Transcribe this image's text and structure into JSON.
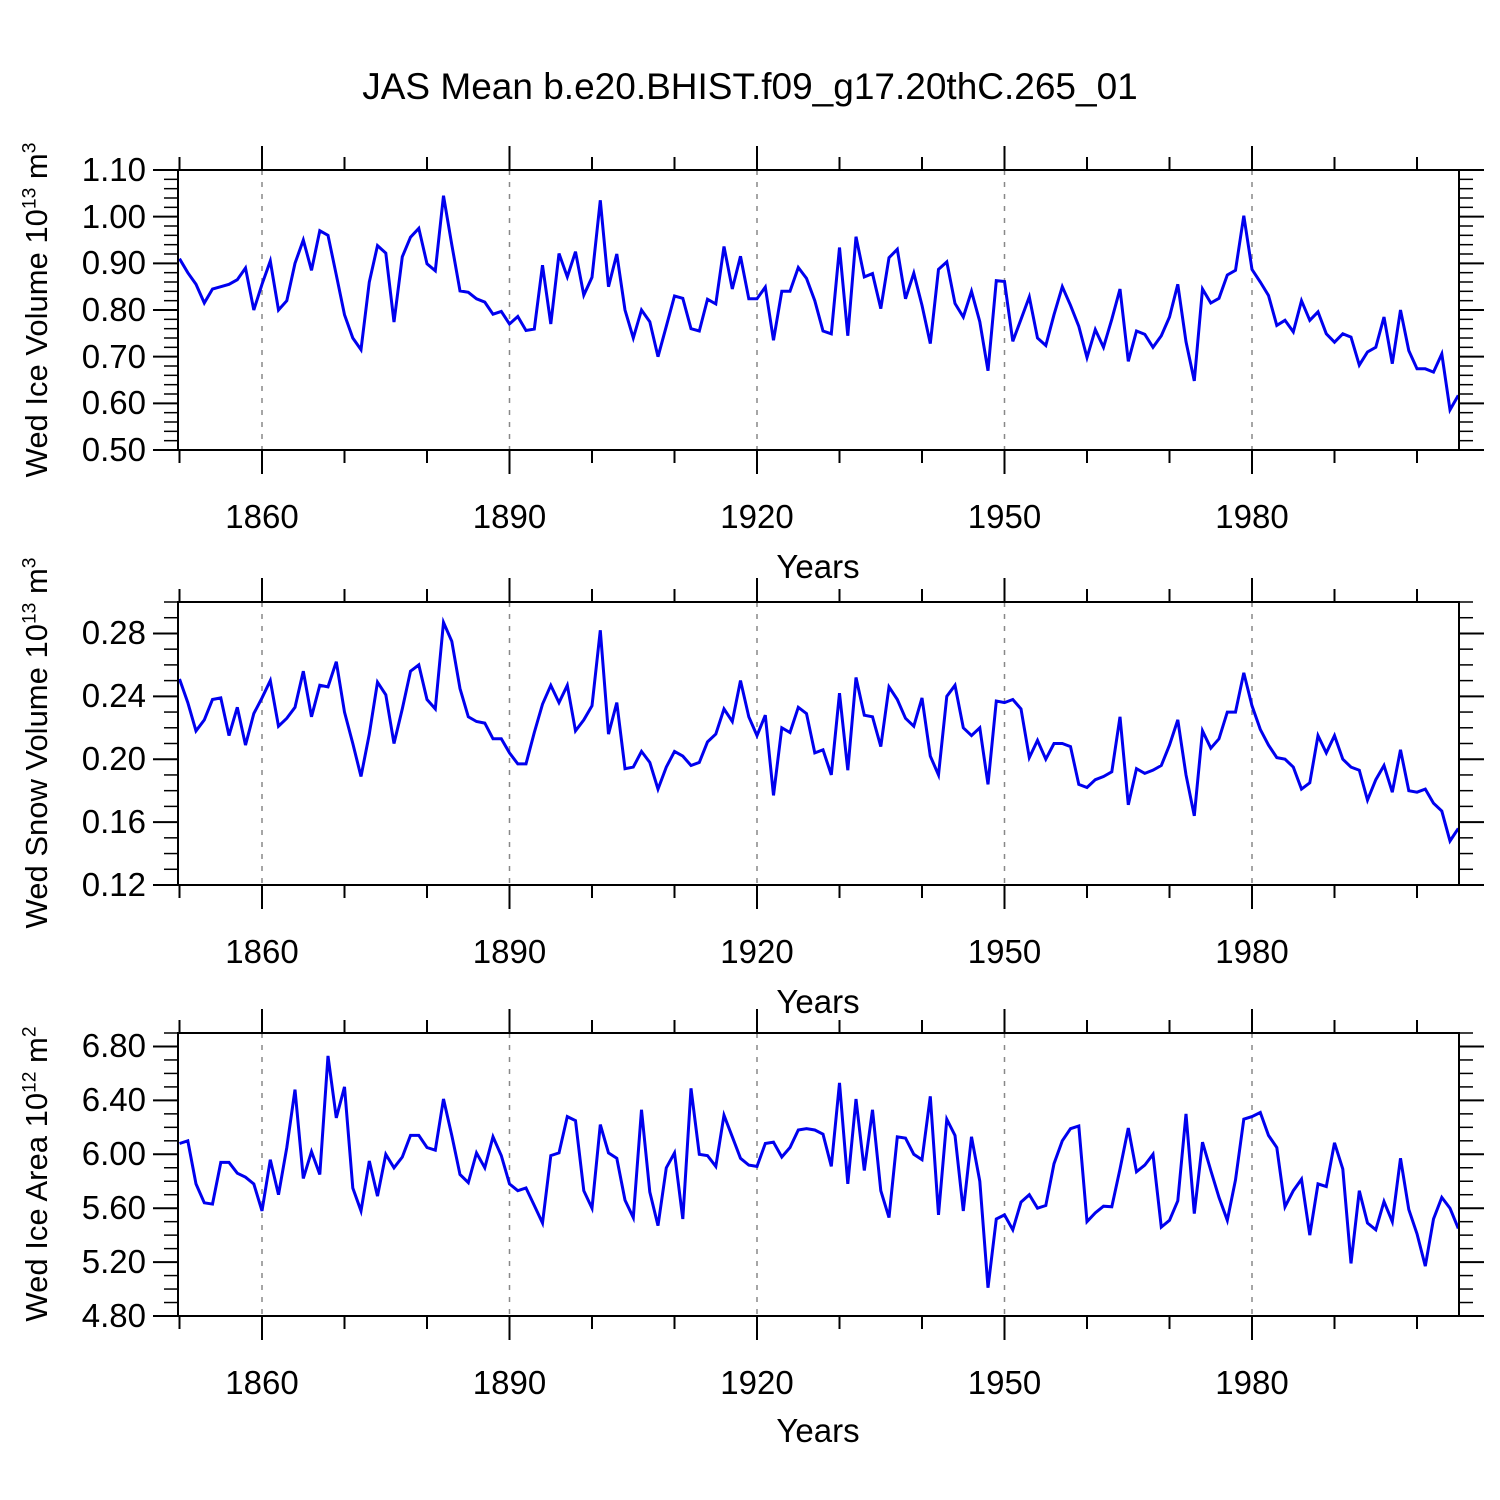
{
  "title": "JAS Mean b.e20.BHIST.f09_g17.20thC.265_01",
  "line_color": "#0000EE",
  "axis_color": "#000000",
  "grid_color": "#888888",
  "chart_data": {
    "type": "line",
    "xlabel": "Years",
    "x_start": 1850,
    "x_step": 1,
    "x_major_ticks": [
      1860,
      1890,
      1920,
      1950,
      1980
    ],
    "x_major_labels": [
      "1860",
      "1890",
      "1920",
      "1950",
      "1980"
    ],
    "x_minor_step": 10,
    "x_range": [
      1849.8,
      2005.3
    ],
    "grid_on": true,
    "panels": [
      {
        "name": "wed-ice-volume",
        "ylabel": {
          "pre": "Wed Ice Volume 10",
          "sup": "13",
          "mid": " m",
          "sup2": "3"
        },
        "ylim": [
          0.5,
          1.1
        ],
        "y_major_ticks": [
          1.1,
          1.0,
          0.9,
          0.8,
          0.7,
          0.6,
          0.5
        ],
        "y_major_labels": [
          "1.10",
          "1.00",
          "0.90",
          "0.80",
          "0.70",
          "0.60",
          "0.50"
        ],
        "y_minor_step": 0.02,
        "values": [
          0.91,
          0.88,
          0.855,
          0.815,
          0.845,
          0.85,
          0.855,
          0.865,
          0.89,
          0.8,
          0.855,
          0.905,
          0.8,
          0.82,
          0.9,
          0.95,
          0.885,
          0.97,
          0.96,
          0.875,
          0.79,
          0.74,
          0.715,
          0.86,
          0.938,
          0.922,
          0.774,
          0.914,
          0.956,
          0.975,
          0.899,
          0.884,
          1.045,
          0.94,
          0.841,
          0.838,
          0.824,
          0.817,
          0.791,
          0.797,
          0.77,
          0.786,
          0.756,
          0.759,
          0.896,
          0.77,
          0.921,
          0.871,
          0.925,
          0.832,
          0.87,
          1.035,
          0.85,
          0.92,
          0.8,
          0.74,
          0.8,
          0.775,
          0.7,
          0.765,
          0.83,
          0.825,
          0.76,
          0.755,
          0.823,
          0.813,
          0.936,
          0.845,
          0.915,
          0.824,
          0.824,
          0.849,
          0.735,
          0.84,
          0.84,
          0.891,
          0.868,
          0.82,
          0.755,
          0.749,
          0.934,
          0.745,
          0.957,
          0.871,
          0.878,
          0.803,
          0.912,
          0.93,
          0.824,
          0.879,
          0.81,
          0.728,
          0.887,
          0.903,
          0.814,
          0.785,
          0.84,
          0.775,
          0.67,
          0.863,
          0.861,
          0.733,
          0.78,
          0.828,
          0.74,
          0.724,
          0.79,
          0.85,
          0.81,
          0.765,
          0.698,
          0.758,
          0.72,
          0.78,
          0.845,
          0.69,
          0.755,
          0.748,
          0.72,
          0.745,
          0.785,
          0.855,
          0.732,
          0.648,
          0.845,
          0.815,
          0.825,
          0.875,
          0.885,
          1.002,
          0.887,
          0.86,
          0.831,
          0.767,
          0.778,
          0.753,
          0.82,
          0.778,
          0.796,
          0.749,
          0.731,
          0.749,
          0.742,
          0.682,
          0.71,
          0.72,
          0.785,
          0.685,
          0.8,
          0.713,
          0.674,
          0.674,
          0.667,
          0.706,
          0.586,
          0.617
        ]
      },
      {
        "name": "wed-snow-volume",
        "ylabel": {
          "pre": "Wed Snow Volume 10",
          "sup": "13",
          "mid": " m",
          "sup2": "3"
        },
        "ylim": [
          0.12,
          0.3
        ],
        "y_major_ticks": [
          0.28,
          0.24,
          0.2,
          0.16,
          0.12
        ],
        "y_major_labels": [
          "0.28",
          "0.24",
          "0.20",
          "0.16",
          "0.12"
        ],
        "y_minor_step": 0.01,
        "values": [
          0.251,
          0.236,
          0.218,
          0.225,
          0.238,
          0.239,
          0.215,
          0.233,
          0.209,
          0.229,
          0.239,
          0.25,
          0.221,
          0.226,
          0.233,
          0.256,
          0.227,
          0.247,
          0.246,
          0.262,
          0.23,
          0.21,
          0.189,
          0.216,
          0.249,
          0.241,
          0.21,
          0.232,
          0.256,
          0.26,
          0.238,
          0.232,
          0.287,
          0.275,
          0.245,
          0.227,
          0.224,
          0.223,
          0.213,
          0.213,
          0.204,
          0.197,
          0.197,
          0.217,
          0.235,
          0.247,
          0.236,
          0.247,
          0.218,
          0.225,
          0.234,
          0.282,
          0.216,
          0.236,
          0.194,
          0.195,
          0.205,
          0.198,
          0.181,
          0.195,
          0.205,
          0.202,
          0.196,
          0.198,
          0.211,
          0.216,
          0.232,
          0.224,
          0.25,
          0.227,
          0.215,
          0.228,
          0.177,
          0.22,
          0.217,
          0.233,
          0.229,
          0.204,
          0.206,
          0.19,
          0.242,
          0.193,
          0.252,
          0.228,
          0.227,
          0.208,
          0.246,
          0.238,
          0.226,
          0.221,
          0.239,
          0.202,
          0.19,
          0.24,
          0.247,
          0.22,
          0.215,
          0.22,
          0.184,
          0.237,
          0.236,
          0.238,
          0.232,
          0.201,
          0.212,
          0.2,
          0.21,
          0.21,
          0.208,
          0.184,
          0.182,
          0.187,
          0.189,
          0.192,
          0.227,
          0.171,
          0.194,
          0.191,
          0.193,
          0.196,
          0.209,
          0.225,
          0.19,
          0.164,
          0.218,
          0.207,
          0.213,
          0.23,
          0.23,
          0.255,
          0.234,
          0.219,
          0.209,
          0.201,
          0.2,
          0.195,
          0.181,
          0.185,
          0.215,
          0.204,
          0.215,
          0.2,
          0.195,
          0.193,
          0.174,
          0.187,
          0.196,
          0.179,
          0.206,
          0.18,
          0.179,
          0.181,
          0.172,
          0.167,
          0.148,
          0.156
        ]
      },
      {
        "name": "wed-ice-area",
        "ylabel": {
          "pre": "Wed Ice Area 10",
          "sup": "12",
          "mid": " m",
          "sup2": "2"
        },
        "ylim": [
          4.8,
          6.9
        ],
        "y_major_ticks": [
          6.8,
          6.4,
          6.0,
          5.6,
          5.2,
          4.8
        ],
        "y_major_labels": [
          "6.80",
          "6.40",
          "6.00",
          "5.60",
          "5.20",
          "4.80"
        ],
        "y_minor_step": 0.1,
        "values": [
          6.08,
          6.1,
          5.78,
          5.64,
          5.63,
          5.94,
          5.94,
          5.86,
          5.83,
          5.78,
          5.58,
          5.96,
          5.7,
          6.05,
          6.48,
          5.82,
          6.02,
          5.85,
          6.73,
          6.27,
          6.5,
          5.75,
          5.58,
          5.95,
          5.69,
          6.0,
          5.9,
          5.98,
          6.14,
          6.14,
          6.05,
          6.03,
          6.41,
          6.14,
          5.85,
          5.79,
          6.01,
          5.9,
          6.13,
          5.99,
          5.78,
          5.73,
          5.75,
          5.62,
          5.49,
          5.99,
          6.01,
          6.28,
          6.25,
          5.73,
          5.6,
          6.22,
          6.01,
          5.97,
          5.66,
          5.53,
          6.33,
          5.72,
          5.47,
          5.9,
          6.01,
          5.52,
          6.49,
          6.0,
          5.99,
          5.91,
          6.29,
          6.13,
          5.97,
          5.92,
          5.91,
          6.08,
          6.09,
          5.98,
          6.05,
          6.18,
          6.19,
          6.18,
          6.15,
          5.91,
          6.53,
          5.78,
          6.41,
          5.88,
          6.33,
          5.73,
          5.53,
          6.13,
          6.12,
          6.0,
          5.96,
          6.43,
          5.55,
          6.26,
          6.14,
          5.58,
          6.13,
          5.8,
          5.01,
          5.52,
          5.55,
          5.44,
          5.645,
          5.7,
          5.6,
          5.62,
          5.93,
          6.1,
          6.19,
          6.21,
          5.5,
          5.565,
          5.615,
          5.61,
          5.89,
          6.195,
          5.87,
          5.92,
          6.0,
          5.46,
          5.51,
          5.655,
          6.3,
          5.56,
          6.09,
          5.88,
          5.68,
          5.51,
          5.81,
          6.26,
          6.28,
          6.31,
          6.14,
          6.05,
          5.61,
          5.73,
          5.815,
          5.4,
          5.78,
          5.76,
          6.085,
          5.89,
          5.19,
          5.73,
          5.49,
          5.44,
          5.65,
          5.5,
          5.97,
          5.59,
          5.41,
          5.17,
          5.52,
          5.68,
          5.6,
          5.45
        ]
      }
    ]
  }
}
